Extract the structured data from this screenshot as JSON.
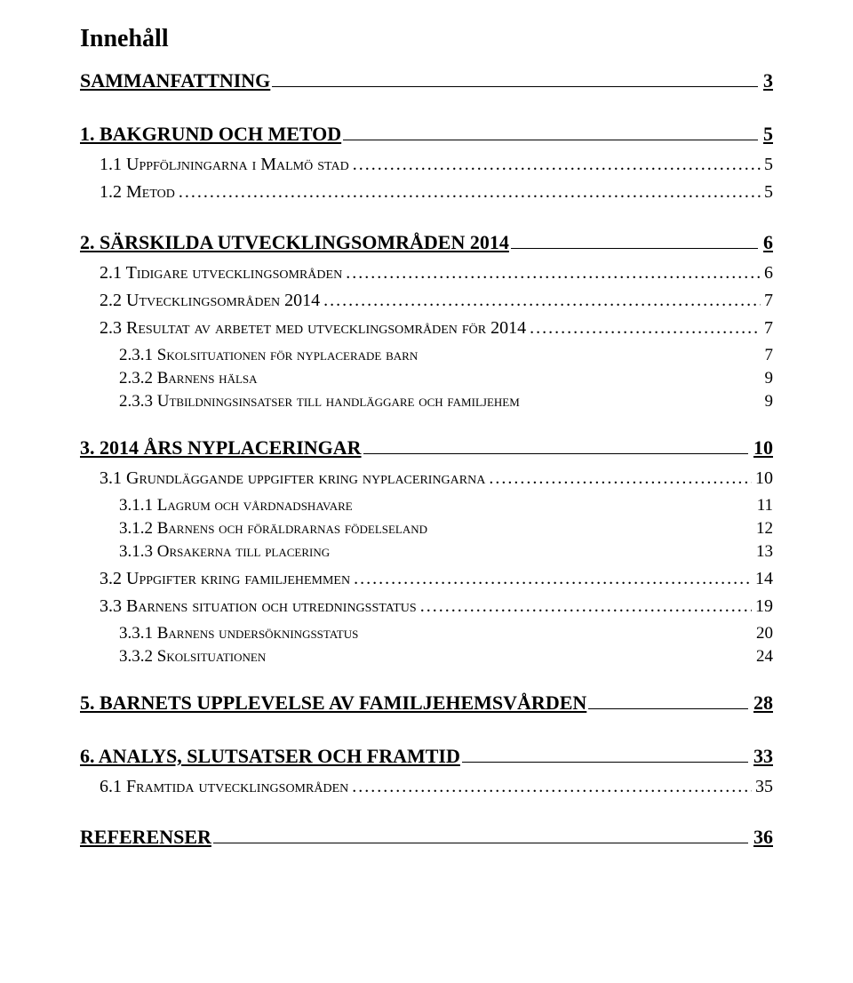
{
  "title": "Innehåll",
  "entries": [
    {
      "level": 1,
      "label": "SAMMANFATTNING",
      "page": "3"
    },
    {
      "level": 1,
      "label": "1.  BAKGRUND OCH METOD",
      "page": "5"
    },
    {
      "level": 2,
      "label": "1.1 Uppföljningarna i Malmö stad",
      "page": "5"
    },
    {
      "level": 2,
      "label": "1.2 Metod",
      "page": "5"
    },
    {
      "level": 1,
      "label": "2.  SÄRSKILDA UTVECKLINGSOMRÅDEN 2014",
      "page": "6"
    },
    {
      "level": 2,
      "label": "2.1 Tidigare utvecklingsområden",
      "page": "6"
    },
    {
      "level": 2,
      "label": "2.2 Utvecklingsområden 2014",
      "page": "7"
    },
    {
      "level": 2,
      "label": "2.3 Resultat av arbetet med utvecklingsområden för 2014",
      "page": "7"
    },
    {
      "level": 3,
      "label": "2.3.1 Skolsituationen för nyplacerade barn",
      "page": "7"
    },
    {
      "level": 3,
      "label": "2.3.2 Barnens hälsa",
      "page": "9"
    },
    {
      "level": 3,
      "label": "2.3.3 Utbildningsinsatser till handläggare och familjehem",
      "page": "9"
    },
    {
      "level": 1,
      "label": "3.  2014 ÅRS NYPLACERINGAR",
      "page": "10"
    },
    {
      "level": 2,
      "label": "3.1 Grundläggande uppgifter kring nyplaceringarna",
      "page": "10"
    },
    {
      "level": 3,
      "label": "3.1.1 Lagrum och vårdnadshavare",
      "page": "11"
    },
    {
      "level": 3,
      "label": "3.1.2 Barnens och föräldrarnas födelseland",
      "page": "12"
    },
    {
      "level": 3,
      "label": "3.1.3 Orsakerna till placering",
      "page": "13"
    },
    {
      "level": 2,
      "label": "3.2 Uppgifter kring familjehemmen",
      "page": "14"
    },
    {
      "level": 2,
      "label": "3.3 Barnens situation och utredningsstatus",
      "page": "19"
    },
    {
      "level": 3,
      "label": "3.3.1 Barnens undersökningsstatus",
      "page": "20"
    },
    {
      "level": 3,
      "label": "3.3.2 Skolsituationen",
      "page": "24"
    },
    {
      "level": 1,
      "label": "5. BARNETS UPPLEVELSE AV FAMILJEHEMSVÅRDEN",
      "page": "28"
    },
    {
      "level": 1,
      "label": "6. ANALYS, SLUTSATSER OCH FRAMTID",
      "page": "33"
    },
    {
      "level": 2,
      "label": "6.1 Framtida utvecklingsområden",
      "page": "35"
    },
    {
      "level": 1,
      "label": "REFERENSER",
      "page": "36"
    }
  ]
}
